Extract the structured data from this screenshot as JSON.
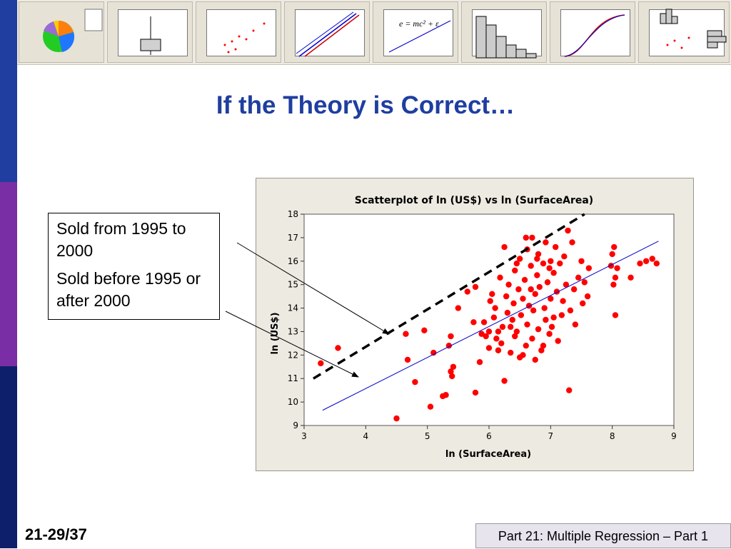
{
  "slide": {
    "title": "If the Theory is Correct…",
    "slide_number": "21-29/37",
    "footer": "Part 21: Multiple Regression – Part 1"
  },
  "callout": {
    "line1": "Sold from 1995 to 2000",
    "line2": "Sold before 1995 or after 2000"
  },
  "colors": {
    "title_blue": "#1f3ea0",
    "points": "#ff0000",
    "fit_line": "#0000cc",
    "dashed_line": "#000000",
    "panel_bg": "#edeae1"
  },
  "chart_data": {
    "type": "scatter",
    "title": "Scatterplot of ln (US$) vs ln (SurfaceArea)",
    "xlabel": "ln (SurfaceArea)",
    "ylabel": "ln (US$)",
    "xlim": [
      3,
      9
    ],
    "ylim": [
      9,
      18
    ],
    "xticks": [
      3,
      4,
      5,
      6,
      7,
      8,
      9
    ],
    "yticks": [
      9,
      10,
      11,
      12,
      13,
      14,
      15,
      16,
      17,
      18
    ],
    "grid": false,
    "lines": [
      {
        "style": "solid",
        "color": "#0000cc",
        "x": [
          3.3,
          8.75
        ],
        "y": [
          9.65,
          16.85
        ]
      },
      {
        "style": "dashed",
        "color": "#000000",
        "x": [
          3.15,
          7.55
        ],
        "y": [
          11.0,
          18.0
        ]
      }
    ],
    "points": [
      [
        3.27,
        11.65
      ],
      [
        3.55,
        12.3
      ],
      [
        4.5,
        9.3
      ],
      [
        4.65,
        12.9
      ],
      [
        4.68,
        11.8
      ],
      [
        4.8,
        10.85
      ],
      [
        4.95,
        13.05
      ],
      [
        5.05,
        9.8
      ],
      [
        5.1,
        12.1
      ],
      [
        5.25,
        10.25
      ],
      [
        5.3,
        10.3
      ],
      [
        5.35,
        12.4
      ],
      [
        5.38,
        12.8
      ],
      [
        5.38,
        11.3
      ],
      [
        5.4,
        11.1
      ],
      [
        5.42,
        11.5
      ],
      [
        5.5,
        14.0
      ],
      [
        5.65,
        14.7
      ],
      [
        5.75,
        13.4
      ],
      [
        5.78,
        10.4
      ],
      [
        5.78,
        14.9
      ],
      [
        5.85,
        11.7
      ],
      [
        5.88,
        12.9
      ],
      [
        5.92,
        13.4
      ],
      [
        5.95,
        12.8
      ],
      [
        6.0,
        13.0
      ],
      [
        6.0,
        12.3
      ],
      [
        6.02,
        14.3
      ],
      [
        6.05,
        14.6
      ],
      [
        6.08,
        13.6
      ],
      [
        6.1,
        14.0
      ],
      [
        6.12,
        12.7
      ],
      [
        6.15,
        12.2
      ],
      [
        6.18,
        15.3
      ],
      [
        6.2,
        12.5
      ],
      [
        6.22,
        13.2
      ],
      [
        6.25,
        16.6
      ],
      [
        6.25,
        10.9
      ],
      [
        6.28,
        14.5
      ],
      [
        6.3,
        13.8
      ],
      [
        6.32,
        15.0
      ],
      [
        6.35,
        12.1
      ],
      [
        6.38,
        13.5
      ],
      [
        6.4,
        14.2
      ],
      [
        6.42,
        15.6
      ],
      [
        6.42,
        12.8
      ],
      [
        6.45,
        13.0
      ],
      [
        6.48,
        14.8
      ],
      [
        6.5,
        11.9
      ],
      [
        6.5,
        16.1
      ],
      [
        6.52,
        13.7
      ],
      [
        6.55,
        14.4
      ],
      [
        6.58,
        15.2
      ],
      [
        6.6,
        12.4
      ],
      [
        6.62,
        13.3
      ],
      [
        6.62,
        16.5
      ],
      [
        6.65,
        14.1
      ],
      [
        6.68,
        15.8
      ],
      [
        6.7,
        17.0
      ],
      [
        6.7,
        12.7
      ],
      [
        6.72,
        13.9
      ],
      [
        6.75,
        14.6
      ],
      [
        6.75,
        11.8
      ],
      [
        6.78,
        15.4
      ],
      [
        6.8,
        16.3
      ],
      [
        6.8,
        13.1
      ],
      [
        6.82,
        14.9
      ],
      [
        6.85,
        12.2
      ],
      [
        6.88,
        15.9
      ],
      [
        6.9,
        14.0
      ],
      [
        6.92,
        16.8
      ],
      [
        6.92,
        13.5
      ],
      [
        6.95,
        15.1
      ],
      [
        6.98,
        12.9
      ],
      [
        7.0,
        16.0
      ],
      [
        7.0,
        14.4
      ],
      [
        7.02,
        13.2
      ],
      [
        7.05,
        15.5
      ],
      [
        7.08,
        16.6
      ],
      [
        7.1,
        14.7
      ],
      [
        7.12,
        12.6
      ],
      [
        7.15,
        15.9
      ],
      [
        7.18,
        13.7
      ],
      [
        7.2,
        14.3
      ],
      [
        7.22,
        16.2
      ],
      [
        7.25,
        15.0
      ],
      [
        7.28,
        17.3
      ],
      [
        7.3,
        10.5
      ],
      [
        7.32,
        13.9
      ],
      [
        7.35,
        16.8
      ],
      [
        7.38,
        14.8
      ],
      [
        7.4,
        13.3
      ],
      [
        7.45,
        15.3
      ],
      [
        7.5,
        16.0
      ],
      [
        7.52,
        14.2
      ],
      [
        7.55,
        15.1
      ],
      [
        7.6,
        14.5
      ],
      [
        7.62,
        15.7
      ],
      [
        7.98,
        15.8
      ],
      [
        8.0,
        16.3
      ],
      [
        8.02,
        15.0
      ],
      [
        8.03,
        16.6
      ],
      [
        8.05,
        13.7
      ],
      [
        8.05,
        15.3
      ],
      [
        8.08,
        15.7
      ],
      [
        8.3,
        15.3
      ],
      [
        8.45,
        15.9
      ],
      [
        8.55,
        16.0
      ],
      [
        8.65,
        16.1
      ],
      [
        8.72,
        15.9
      ],
      [
        6.35,
        13.2
      ],
      [
        6.55,
        12.0
      ],
      [
        6.68,
        14.8
      ],
      [
        6.88,
        12.4
      ],
      [
        7.05,
        13.6
      ],
      [
        6.45,
        15.9
      ],
      [
        6.15,
        13.0
      ],
      [
        6.6,
        17.0
      ],
      [
        6.78,
        16.1
      ],
      [
        6.98,
        15.7
      ]
    ]
  }
}
